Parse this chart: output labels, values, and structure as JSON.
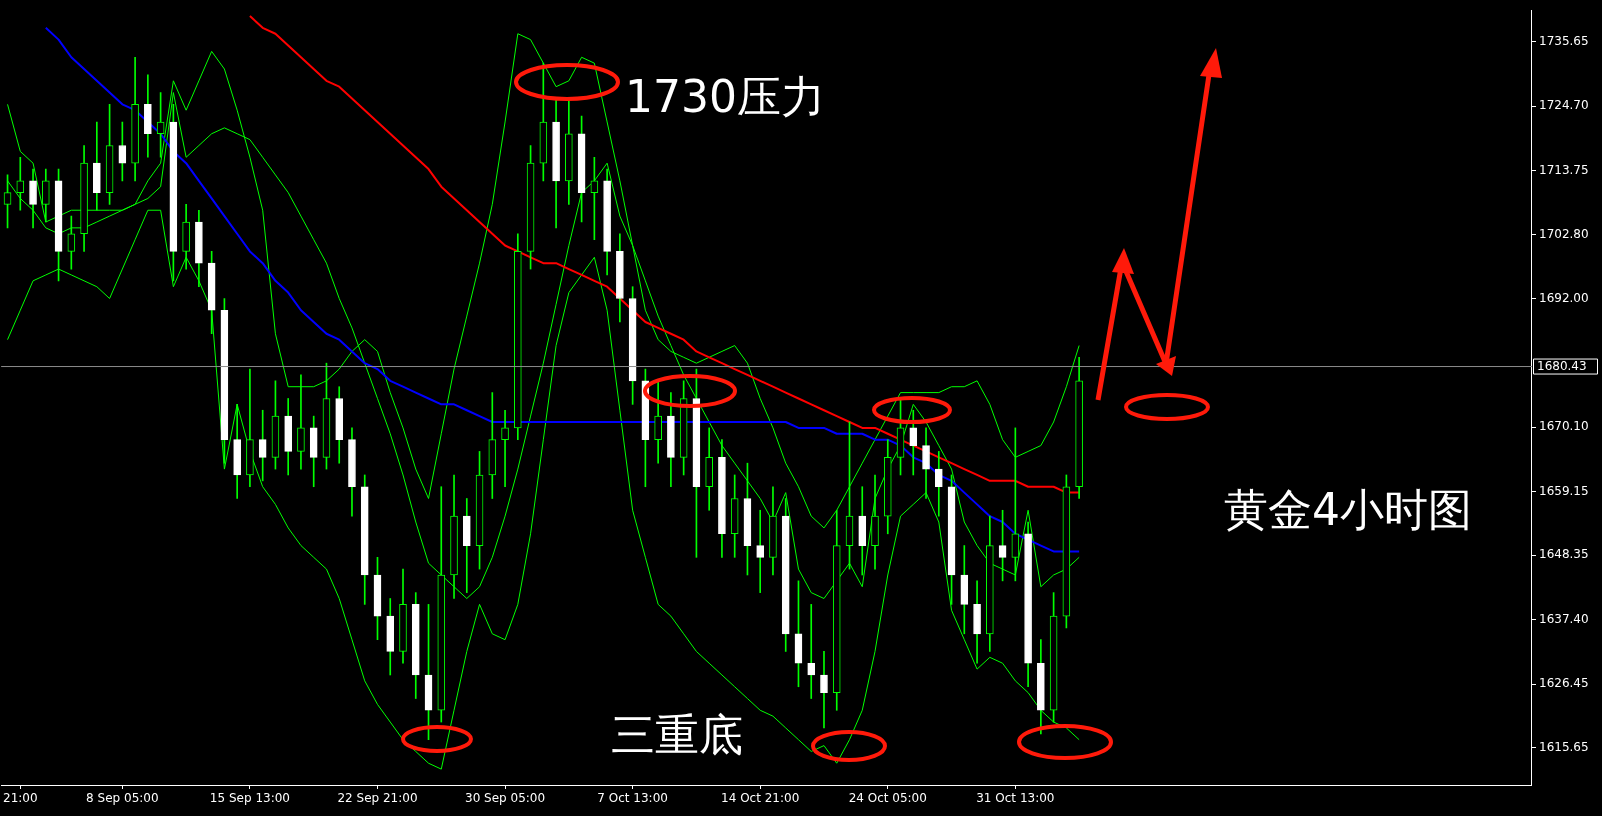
{
  "chart_data": {
    "type": "candlestick",
    "categories": [
      null,
      "21:00",
      null,
      null,
      null,
      null,
      null,
      null,
      null,
      "8 Sep 05:00",
      null,
      null,
      null,
      null,
      null,
      null,
      null,
      null,
      null,
      "15 Sep 13:00",
      null,
      null,
      null,
      null,
      null,
      null,
      null,
      null,
      null,
      "22 Sep 21:00",
      null,
      null,
      null,
      null,
      null,
      null,
      null,
      null,
      null,
      "30 Sep 05:00",
      null,
      null,
      null,
      null,
      null,
      null,
      null,
      null,
      null,
      "7 Oct 13:00",
      null,
      null,
      null,
      null,
      null,
      null,
      null,
      null,
      null,
      "14 Oct 21:00",
      null,
      null,
      null,
      null,
      null,
      null,
      null,
      null,
      null,
      "24 Oct 05:00",
      null,
      null,
      null,
      null,
      null,
      null,
      null,
      null,
      null,
      "31 Oct 13:00",
      null,
      null,
      null,
      null,
      null,
      null,
      null,
      null,
      null,
      null,
      null,
      null,
      null,
      null,
      null,
      null,
      null,
      null,
      null,
      null,
      null,
      null,
      null,
      null,
      null,
      null,
      null,
      null,
      null,
      null,
      null,
      null,
      null,
      null,
      null,
      null,
      null,
      null,
      null,
      null
    ],
    "ohlc": [
      [
        1708,
        1713,
        1704,
        1710
      ],
      [
        1710,
        1716,
        1707,
        1712
      ],
      [
        1712,
        1714,
        1704,
        1708
      ],
      [
        1708,
        1714,
        1705,
        1712
      ],
      [
        1712,
        1714,
        1695,
        1700
      ],
      [
        1700,
        1706,
        1697,
        1703
      ],
      [
        1703,
        1718,
        1700,
        1715
      ],
      [
        1715,
        1722,
        1707,
        1710
      ],
      [
        1710,
        1725,
        1708,
        1718
      ],
      [
        1718,
        1722,
        1712,
        1715
      ],
      [
        1715,
        1733,
        1712,
        1725
      ],
      [
        1725,
        1730,
        1716,
        1720
      ],
      [
        1720,
        1727,
        1716,
        1722
      ],
      [
        1722,
        1725,
        1695,
        1700
      ],
      [
        1700,
        1708,
        1697,
        1705
      ],
      [
        1705,
        1707,
        1694,
        1698
      ],
      [
        1698,
        1700,
        1686,
        1690
      ],
      [
        1690,
        1692,
        1664,
        1668
      ],
      [
        1668,
        1674,
        1658,
        1662
      ],
      [
        1662,
        1680,
        1660,
        1668
      ],
      [
        1668,
        1673,
        1661,
        1665
      ],
      [
        1665,
        1678,
        1663,
        1672
      ],
      [
        1672,
        1675,
        1662,
        1666
      ],
      [
        1666,
        1679,
        1663,
        1670
      ],
      [
        1670,
        1672,
        1660,
        1665
      ],
      [
        1665,
        1681,
        1663,
        1675
      ],
      [
        1675,
        1677,
        1664,
        1668
      ],
      [
        1668,
        1670,
        1655,
        1660
      ],
      [
        1660,
        1662,
        1640,
        1645
      ],
      [
        1645,
        1648,
        1634,
        1638
      ],
      [
        1638,
        1641,
        1628,
        1632
      ],
      [
        1632,
        1646,
        1630,
        1640
      ],
      [
        1640,
        1642,
        1624,
        1628
      ],
      [
        1628,
        1640,
        1617,
        1622
      ],
      [
        1622,
        1660,
        1620,
        1645
      ],
      [
        1645,
        1662,
        1641,
        1655
      ],
      [
        1655,
        1658,
        1642,
        1650
      ],
      [
        1650,
        1666,
        1646,
        1662
      ],
      [
        1662,
        1676,
        1658,
        1668
      ],
      [
        1668,
        1673,
        1660,
        1670
      ],
      [
        1670,
        1703,
        1668,
        1700
      ],
      [
        1700,
        1718,
        1697,
        1715
      ],
      [
        1715,
        1732,
        1712,
        1722
      ],
      [
        1722,
        1726,
        1704,
        1712
      ],
      [
        1712,
        1726,
        1708,
        1720
      ],
      [
        1720,
        1723,
        1705,
        1710
      ],
      [
        1710,
        1716,
        1702,
        1712
      ],
      [
        1712,
        1714,
        1696,
        1700
      ],
      [
        1700,
        1703,
        1688,
        1692
      ],
      [
        1692,
        1694,
        1674,
        1678
      ],
      [
        1678,
        1680,
        1660,
        1668
      ],
      [
        1668,
        1678,
        1664,
        1672
      ],
      [
        1672,
        1676,
        1660,
        1665
      ],
      [
        1665,
        1678,
        1662,
        1675
      ],
      [
        1675,
        1680,
        1648,
        1660
      ],
      [
        1660,
        1670,
        1656,
        1665
      ],
      [
        1665,
        1668,
        1648,
        1652
      ],
      [
        1652,
        1662,
        1648,
        1658
      ],
      [
        1658,
        1664,
        1645,
        1650
      ],
      [
        1650,
        1656,
        1642,
        1648
      ],
      [
        1648,
        1660,
        1645,
        1655
      ],
      [
        1655,
        1658,
        1632,
        1635
      ],
      [
        1635,
        1644,
        1626,
        1630
      ],
      [
        1630,
        1640,
        1624,
        1628
      ],
      [
        1628,
        1632,
        1619,
        1625
      ],
      [
        1625,
        1656,
        1622,
        1650
      ],
      [
        1650,
        1671,
        1646,
        1655
      ],
      [
        1655,
        1660,
        1645,
        1650
      ],
      [
        1650,
        1662,
        1646,
        1655
      ],
      [
        1655,
        1668,
        1652,
        1665
      ],
      [
        1665,
        1675,
        1662,
        1670
      ],
      [
        1670,
        1673,
        1662,
        1667
      ],
      [
        1667,
        1670,
        1658,
        1663
      ],
      [
        1663,
        1666,
        1655,
        1660
      ],
      [
        1660,
        1662,
        1640,
        1645
      ],
      [
        1645,
        1650,
        1635,
        1640
      ],
      [
        1640,
        1644,
        1630,
        1635
      ],
      [
        1635,
        1655,
        1632,
        1650
      ],
      [
        1650,
        1656,
        1644,
        1648
      ],
      [
        1648,
        1670,
        1644,
        1652
      ],
      [
        1652,
        1654,
        1626,
        1630
      ],
      [
        1630,
        1634,
        1618,
        1622
      ],
      [
        1622,
        1642,
        1620,
        1638
      ],
      [
        1638,
        1662,
        1636,
        1660
      ],
      [
        1660,
        1682,
        1658,
        1678
      ],
      null,
      null,
      null,
      null,
      null,
      null,
      null,
      null,
      null,
      null,
      null,
      null,
      null,
      null,
      null,
      null,
      null,
      null,
      null,
      null,
      null,
      null,
      null,
      null,
      null,
      null,
      null,
      null,
      null,
      null,
      null,
      null,
      null,
      null,
      null
    ],
    "series": [
      {
        "type": "line",
        "color": "#0000ff",
        "values": [
          null,
          null,
          null,
          1738,
          1736,
          1733,
          1731,
          1729,
          1727,
          1725,
          1724,
          1722,
          1720,
          1717,
          1715,
          1712,
          1709,
          1706,
          1703,
          1700,
          1698,
          1695,
          1693,
          1690,
          1688,
          1686,
          1685,
          1683,
          1681,
          1680,
          1678,
          1677,
          1676,
          1675,
          1674,
          1674,
          1673,
          1672,
          1671,
          1671,
          1671,
          1671,
          1671,
          1671,
          1671,
          1671,
          1671,
          1671,
          1671,
          1671,
          1671,
          1671,
          1671,
          1671,
          1671,
          1671,
          1671,
          1671,
          1671,
          1671,
          1671,
          1671,
          1670,
          1670,
          1670,
          1669,
          1669,
          1669,
          1668,
          1668,
          1667,
          1665,
          1664,
          1662,
          1661,
          1659,
          1657,
          1655,
          1654,
          1652,
          1651,
          1650,
          1649,
          1649,
          1649,
          null,
          null,
          null,
          null,
          null,
          null,
          null,
          null,
          null,
          null,
          null,
          null,
          null,
          null,
          null,
          null,
          null,
          null,
          null,
          null,
          null,
          null,
          null,
          null,
          null,
          null,
          null,
          null,
          null,
          null,
          null,
          null,
          null,
          null,
          null
        ]
      },
      {
        "type": "line",
        "color": "#ff0000",
        "values": [
          null,
          null,
          null,
          null,
          null,
          null,
          null,
          null,
          null,
          null,
          null,
          null,
          null,
          null,
          null,
          null,
          null,
          null,
          null,
          1740,
          1738,
          1737,
          1735,
          1733,
          1731,
          1729,
          1728,
          1726,
          1724,
          1722,
          1720,
          1718,
          1716,
          1714,
          1711,
          1709,
          1707,
          1705,
          1703,
          1701,
          1700,
          1699,
          1698,
          1698,
          1697,
          1696,
          1695,
          1694,
          1692,
          1690,
          1688,
          1687,
          1686,
          1685,
          1683,
          1682,
          1681,
          1680,
          1679,
          1678,
          1677,
          1676,
          1675,
          1674,
          1673,
          1672,
          1671,
          1670,
          1670,
          1669,
          1668,
          1667,
          1666,
          1665,
          1664,
          1663,
          1662,
          1661,
          1661,
          1661,
          1660,
          1660,
          1660,
          1659,
          1659,
          null,
          null,
          null,
          null,
          null,
          null,
          null,
          null,
          null,
          null,
          null,
          null,
          null,
          null,
          null,
          null,
          null,
          null,
          null,
          null,
          null,
          null,
          null,
          null,
          null,
          null,
          null,
          null,
          null,
          null,
          null,
          null,
          null,
          null,
          null
        ]
      },
      {
        "type": "line",
        "color": "#00ff00",
        "values": [
          1725,
          1717,
          1715,
          1705,
          1706,
          1707,
          1707,
          1707,
          1707,
          1707,
          1708,
          1712,
          1715,
          1729,
          1724,
          1729,
          1734,
          1731,
          1724,
          1716,
          1707,
          1686,
          1677,
          1677,
          1677,
          1678,
          1680,
          1683,
          1685,
          1683,
          1676,
          1670,
          1663,
          1658,
          1669,
          1680,
          1689,
          1698,
          1708,
          1722,
          1737,
          1736,
          1732,
          1728,
          1729,
          1733,
          1732,
          1722,
          1712,
          1701,
          1690,
          1685,
          1683,
          1682,
          1681,
          1682,
          1683,
          1684,
          1681,
          1675,
          1670,
          1664,
          1660,
          1655,
          1653,
          1656,
          1660,
          1664,
          1668,
          1672,
          1676,
          1676,
          1676,
          1676,
          1677,
          1677,
          1678,
          1674,
          1668,
          1665,
          1666,
          1667,
          1671,
          1677,
          1684,
          null,
          null,
          null,
          null,
          null,
          null,
          null,
          null,
          null,
          null,
          null,
          null,
          null,
          null,
          null,
          null,
          null,
          null,
          null,
          null,
          null,
          null,
          null,
          null,
          null,
          null,
          null,
          null,
          null,
          null,
          null,
          null,
          null,
          null,
          null
        ]
      },
      {
        "type": "line",
        "color": "#00ff00",
        "values": [
          1712,
          1709,
          1707,
          1704,
          1703,
          1704,
          1704,
          1705,
          1706,
          1707,
          1708,
          1709,
          1711,
          1727,
          1716,
          1718,
          1720,
          1721,
          1720,
          1719,
          1716,
          1713,
          1710,
          1706,
          1702,
          1698,
          1692,
          1687,
          1681,
          1675,
          1669,
          1662,
          1654,
          1647,
          1645,
          1643,
          1641,
          1643,
          1648,
          1655,
          1663,
          1672,
          1681,
          1691,
          1701,
          1710,
          1712,
          1715,
          1706,
          1701,
          1695,
          1689,
          1684,
          1679,
          1675,
          1671,
          1667,
          1664,
          1661,
          1658,
          1654,
          1659,
          1646,
          1642,
          1641,
          1644,
          1647,
          1643,
          1658,
          1663,
          1667,
          1674,
          1671,
          1667,
          1663,
          1654,
          1650,
          1647,
          1646,
          1645,
          1656,
          1643,
          1645,
          1646,
          1648,
          null,
          null,
          null,
          null,
          null,
          null,
          null,
          null,
          null,
          null,
          null,
          null,
          null,
          null,
          null,
          null,
          null,
          null,
          null,
          null,
          null,
          null,
          null,
          null,
          null,
          null,
          null,
          null,
          null,
          null,
          null,
          null,
          null,
          null,
          null
        ]
      },
      {
        "type": "line",
        "color": "#00ff00",
        "values": [
          1685,
          1690,
          1695,
          1696,
          1697,
          1696,
          1695,
          1694,
          1692,
          1697,
          1702,
          1707,
          1707,
          1694,
          1699,
          1695,
          1690,
          1663,
          1674,
          1666,
          1660,
          1657,
          1653,
          1650,
          1648,
          1646,
          1641,
          1634,
          1627,
          1623,
          1620,
          1617,
          1615,
          1613,
          1612,
          1622,
          1632,
          1640,
          1635,
          1634,
          1640,
          1652,
          1668,
          1684,
          1693,
          1696,
          1699,
          1690,
          1673,
          1656,
          1648,
          1640,
          1638,
          1635,
          1632,
          1630,
          1628,
          1626,
          1624,
          1622,
          1621,
          1619,
          1617,
          1615,
          1616,
          1613,
          1617,
          1622,
          1632,
          1645,
          1655,
          1657,
          1659,
          1654,
          1639,
          1634,
          1629,
          1631,
          1630,
          1627,
          1625,
          1622,
          1620,
          1619,
          1617,
          null,
          null,
          null,
          null,
          null,
          null,
          null,
          null,
          null,
          null,
          null,
          null,
          null,
          null,
          null,
          null,
          null,
          null,
          null,
          null,
          null,
          null,
          null,
          null,
          null,
          null,
          null,
          null,
          null,
          null,
          null,
          null,
          null,
          null,
          null
        ]
      }
    ],
    "ylim": [
      1609.3,
      1741
    ],
    "yticks": [
      {
        "value": 1615.65,
        "label": "1615.65"
      },
      {
        "value": 1626.45,
        "label": "1626.45"
      },
      {
        "value": 1637.4,
        "label": "1637.40"
      },
      {
        "value": 1648.35,
        "label": "1648.35"
      },
      {
        "value": 1659.15,
        "label": "1659.15"
      },
      {
        "value": 1670.1,
        "label": "1670.10"
      },
      {
        "value": 1692,
        "label": "1692.00"
      },
      {
        "value": 1702.8,
        "label": "1702.80"
      },
      {
        "value": 1713.75,
        "label": "1713.75"
      },
      {
        "value": 1724.7,
        "label": "1724.70"
      },
      {
        "value": 1735.65,
        "label": "1735.65"
      }
    ],
    "ref_lines": [
      {
        "axis": "y",
        "value": 1680.43,
        "label": "1680.43",
        "color": "#8c8c8c"
      }
    ],
    "annotations": [
      "1730压力",
      "三重底",
      "黄金4小时图"
    ],
    "grid": false,
    "legend": false
  }
}
